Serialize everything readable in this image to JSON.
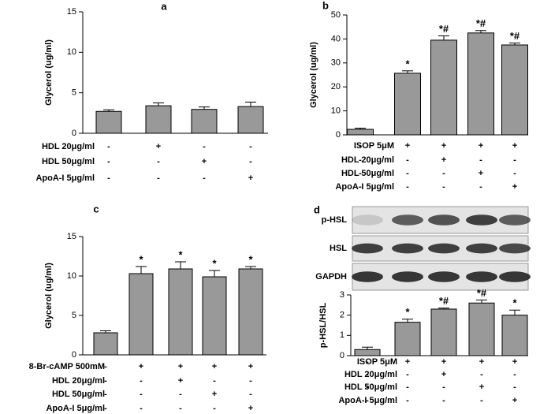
{
  "chart_data": [
    {
      "type": "bar",
      "panel": "a",
      "y_label": "Glycerol (ug/ml)",
      "categories": [
        null,
        null,
        null,
        null
      ],
      "values": [
        2.7,
        3.4,
        2.95,
        3.3
      ],
      "errors": [
        0.2,
        0.35,
        0.3,
        0.55
      ],
      "significance": [
        null,
        null,
        null,
        null
      ],
      "color": "#999999",
      "ylim": [
        0,
        15
      ],
      "yticks": [
        0,
        5,
        10,
        15
      ],
      "conditions": [
        {
          "name": "HDL 20μg/ml",
          "marks": [
            "-",
            "+",
            "-",
            "-"
          ]
        },
        {
          "name": "HDL 50μg/ml",
          "marks": [
            "-",
            "-",
            "+",
            "-"
          ]
        },
        {
          "name": "ApoA-I 5μg/ml",
          "marks": [
            "-",
            "-",
            "-",
            "+"
          ]
        }
      ]
    },
    {
      "type": "bar",
      "panel": "b",
      "y_label": "Glycerol (ug/ml)",
      "categories": [
        null,
        null,
        null,
        null,
        null
      ],
      "values": [
        2.3,
        25.7,
        39.5,
        42.5,
        37.5
      ],
      "errors": [
        0.5,
        1.0,
        1.8,
        1.0,
        0.8
      ],
      "significance": [
        null,
        "*",
        "*#",
        "*#",
        "*#"
      ],
      "color": "#999999",
      "ylim": [
        0,
        50
      ],
      "yticks": [
        0,
        10,
        20,
        30,
        40,
        50
      ],
      "conditions": [
        {
          "name": "ISOP 5μM",
          "marks": [
            "-",
            "+",
            "+",
            "+",
            "+"
          ]
        },
        {
          "name": "HDL 20μg/ml",
          "marks": [
            "-",
            "-",
            "+",
            "-",
            "-"
          ]
        },
        {
          "name": "HDL 50μg/ml",
          "marks": [
            "-",
            "-",
            "-",
            "+",
            "-"
          ]
        },
        {
          "name": "ApoA-I 5μg/ml",
          "marks": [
            "-",
            "-",
            "-",
            "-",
            "+"
          ]
        }
      ]
    },
    {
      "type": "bar",
      "panel": "c",
      "y_label": "Glycerol (ug/ml)",
      "categories": [
        null,
        null,
        null,
        null,
        null
      ],
      "values": [
        2.8,
        10.3,
        10.9,
        9.9,
        10.9
      ],
      "errors": [
        0.25,
        0.9,
        0.9,
        0.8,
        0.3
      ],
      "significance": [
        null,
        "*",
        "*",
        "*",
        "*"
      ],
      "color": "#999999",
      "ylim": [
        0,
        15
      ],
      "yticks": [
        0,
        5,
        10,
        15
      ],
      "conditions": [
        {
          "name": "8-Br-cAMP 500mM",
          "marks": [
            "-",
            "+",
            "+",
            "+",
            "+"
          ]
        },
        {
          "name": "HDL 20μg/ml",
          "marks": [
            "-",
            "-",
            "+",
            "-",
            "-"
          ]
        },
        {
          "name": "HDL 50μg/ml",
          "marks": [
            "-",
            "-",
            "-",
            "+",
            "-"
          ]
        },
        {
          "name": "ApoA-I 5μg/ml",
          "marks": [
            "-",
            "-",
            "-",
            "-",
            "+"
          ]
        }
      ]
    },
    {
      "type": "bar",
      "panel": "d",
      "y_label": "p-HSL/HSL",
      "blots": [
        "p-HSL",
        "HSL",
        "GAPDH"
      ],
      "categories": [
        null,
        null,
        null,
        null,
        null
      ],
      "values": [
        0.3,
        1.65,
        2.3,
        2.6,
        2.0
      ],
      "errors": [
        0.12,
        0.15,
        0.05,
        0.15,
        0.25
      ],
      "significance": [
        null,
        "*",
        "*#",
        "*#",
        "*"
      ],
      "color": "#999999",
      "ylim": [
        0,
        3
      ],
      "yticks": [
        0,
        1,
        2,
        3
      ],
      "conditions": [
        {
          "name": "ISOP 5μM",
          "marks": [
            "-",
            "+",
            "+",
            "+",
            "+"
          ]
        },
        {
          "name": "HDL 20μg/ml",
          "marks": [
            "-",
            "-",
            "+",
            "-",
            "-"
          ]
        },
        {
          "name": "HDL 50μg/ml",
          "marks": [
            "-",
            "-",
            "-",
            "+",
            "-"
          ]
        },
        {
          "name": "ApoA-I 5μg/ml",
          "marks": [
            "-",
            "-",
            "-",
            "-",
            "+"
          ]
        }
      ]
    }
  ]
}
